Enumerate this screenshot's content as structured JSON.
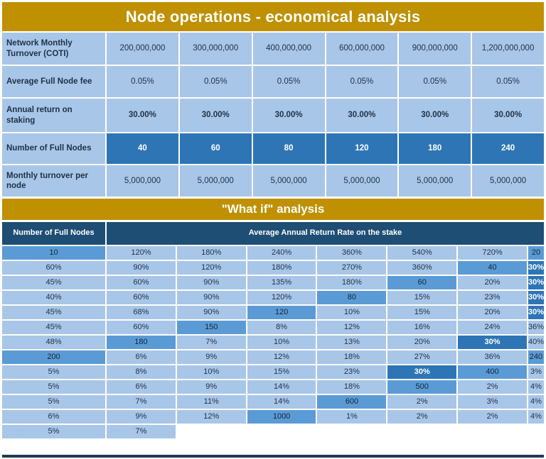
{
  "colors": {
    "gold": "#BF9000",
    "light_blue_cell": "#A8C6E8",
    "medium_blue_cell": "#5B9BD5",
    "dark_blue_highlight": "#2E75B6",
    "navy_header": "#1F4E74",
    "text_dark": "#1F3147",
    "grid_line": "#FFFFFF",
    "bottom_bar": "#203A53"
  },
  "top_table": {
    "title": "Node operations - economical analysis",
    "rows": [
      {
        "label": "Network Monthly Turnover (COTI)",
        "style": "normal",
        "values": [
          "200,000,000",
          "300,000,000",
          "400,000,000",
          "600,000,000",
          "900,000,000",
          "1,200,000,000"
        ]
      },
      {
        "label": "Average Full Node fee",
        "style": "normal",
        "values": [
          "0.05%",
          "0.05%",
          "0.05%",
          "0.05%",
          "0.05%",
          "0.05%"
        ]
      },
      {
        "label": "Annual return on staking",
        "style": "bold",
        "values": [
          "30.00%",
          "30.00%",
          "30.00%",
          "30.00%",
          "30.00%",
          "30.00%"
        ]
      },
      {
        "label": "Number of Full Nodes",
        "style": "highlight",
        "values": [
          "40",
          "60",
          "80",
          "120",
          "180",
          "240"
        ]
      },
      {
        "label": "Monthly turnover per node",
        "style": "normal",
        "values": [
          "5,000,000",
          "5,000,000",
          "5,000,000",
          "5,000,000",
          "5,000,000",
          "5,000,000"
        ]
      }
    ]
  },
  "what_if": {
    "title": "\"What if\" analysis",
    "header_col": "Number of Full Nodes",
    "header_span": "Average Annual Return Rate on the stake",
    "rows": [
      {
        "nodes": "10",
        "values": [
          "120%",
          "180%",
          "240%",
          "360%",
          "540%",
          "720%"
        ],
        "highlight": -1
      },
      {
        "nodes": "20",
        "values": [
          "60%",
          "90%",
          "120%",
          "180%",
          "270%",
          "360%"
        ],
        "highlight": -1
      },
      {
        "nodes": "40",
        "values": [
          "30%",
          "45%",
          "60%",
          "90%",
          "135%",
          "180%"
        ],
        "highlight": 0
      },
      {
        "nodes": "60",
        "values": [
          "20%",
          "30%",
          "40%",
          "60%",
          "90%",
          "120%"
        ],
        "highlight": 1
      },
      {
        "nodes": "80",
        "values": [
          "15%",
          "23%",
          "30%",
          "45%",
          "68%",
          "90%"
        ],
        "highlight": 2
      },
      {
        "nodes": "120",
        "values": [
          "10%",
          "15%",
          "20%",
          "30%",
          "45%",
          "60%"
        ],
        "highlight": 3
      },
      {
        "nodes": "150",
        "values": [
          "8%",
          "12%",
          "16%",
          "24%",
          "36%",
          "48%"
        ],
        "highlight": -1
      },
      {
        "nodes": "180",
        "values": [
          "7%",
          "10%",
          "13%",
          "20%",
          "30%",
          "40%"
        ],
        "highlight": 4
      },
      {
        "nodes": "200",
        "values": [
          "6%",
          "9%",
          "12%",
          "18%",
          "27%",
          "36%"
        ],
        "highlight": -1
      },
      {
        "nodes": "240",
        "values": [
          "5%",
          "8%",
          "10%",
          "15%",
          "23%",
          "30%"
        ],
        "highlight": 5
      },
      {
        "nodes": "400",
        "values": [
          "3%",
          "5%",
          "6%",
          "9%",
          "14%",
          "18%"
        ],
        "highlight": -1
      },
      {
        "nodes": "500",
        "values": [
          "2%",
          "4%",
          "5%",
          "7%",
          "11%",
          "14%"
        ],
        "highlight": -1
      },
      {
        "nodes": "600",
        "values": [
          "2%",
          "3%",
          "4%",
          "6%",
          "9%",
          "12%"
        ],
        "highlight": -1
      },
      {
        "nodes": "1000",
        "values": [
          "1%",
          "2%",
          "2%",
          "4%",
          "5%",
          "7%"
        ],
        "highlight": -1
      }
    ]
  },
  "chart_data": [
    {
      "type": "table",
      "title": "Node operations - economical analysis",
      "row_headers": [
        "Network Monthly Turnover (COTI)",
        "Average Full Node fee",
        "Annual return on staking",
        "Number of Full Nodes",
        "Monthly turnover per node"
      ],
      "rows": [
        [
          200000000,
          300000000,
          400000000,
          600000000,
          900000000,
          1200000000
        ],
        [
          0.0005,
          0.0005,
          0.0005,
          0.0005,
          0.0005,
          0.0005
        ],
        [
          0.3,
          0.3,
          0.3,
          0.3,
          0.3,
          0.3
        ],
        [
          40,
          60,
          80,
          120,
          180,
          240
        ],
        [
          5000000,
          5000000,
          5000000,
          5000000,
          5000000,
          5000000
        ]
      ]
    },
    {
      "type": "table",
      "title": "\"What if\" analysis",
      "xlabel": "Average Annual Return Rate on the stake",
      "row_header_label": "Number of Full Nodes",
      "row_headers": [
        10,
        20,
        40,
        60,
        80,
        120,
        150,
        180,
        200,
        240,
        400,
        500,
        600,
        1000
      ],
      "rows_percent": [
        [
          120,
          180,
          240,
          360,
          540,
          720
        ],
        [
          60,
          90,
          120,
          180,
          270,
          360
        ],
        [
          30,
          45,
          60,
          90,
          135,
          180
        ],
        [
          20,
          30,
          40,
          60,
          90,
          120
        ],
        [
          15,
          23,
          30,
          45,
          68,
          90
        ],
        [
          10,
          15,
          20,
          30,
          45,
          60
        ],
        [
          8,
          12,
          16,
          24,
          36,
          48
        ],
        [
          7,
          10,
          13,
          20,
          30,
          40
        ],
        [
          6,
          9,
          12,
          18,
          27,
          36
        ],
        [
          5,
          8,
          10,
          15,
          23,
          30
        ],
        [
          3,
          5,
          6,
          9,
          14,
          18
        ],
        [
          2,
          4,
          5,
          7,
          11,
          14
        ],
        [
          2,
          3,
          4,
          6,
          9,
          12
        ],
        [
          1,
          2,
          2,
          4,
          5,
          7
        ]
      ],
      "highlighted_cells_note": "30% cells on the diagonal (rows 40,60,80,120,180,240) are highlighted dark blue"
    }
  ]
}
